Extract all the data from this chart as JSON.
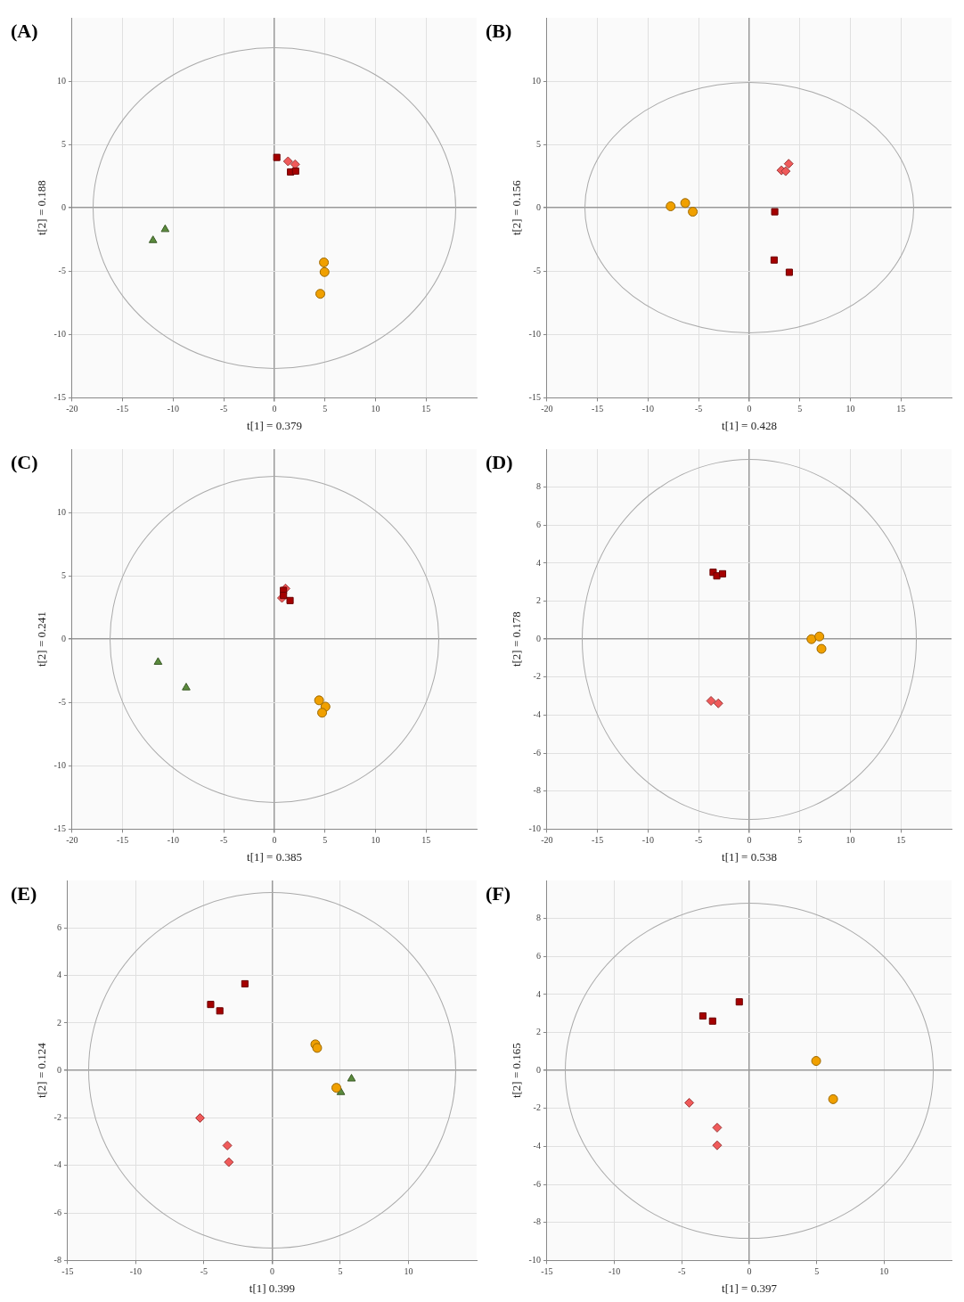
{
  "chart_data": [
    {
      "type": "scatter",
      "title": "(A)",
      "xlabel": "t[1] = 0.379",
      "ylabel": "t[2] = 0.188",
      "xlim": [
        -20,
        20
      ],
      "ylim": [
        -15,
        15
      ],
      "xticks": [
        -20,
        -15,
        -10,
        -5,
        0,
        5,
        10,
        15
      ],
      "yticks": [
        -15,
        -10,
        -5,
        0,
        5,
        10
      ],
      "grid": true,
      "series": [
        {
          "marker": "square",
          "color": "#a50000",
          "x": [
            0.24,
            1.6,
            2.1
          ],
          "values": [
            3.98,
            2.83,
            2.9
          ]
        },
        {
          "marker": "diamond",
          "color": "#f05a5a",
          "x": [
            1.35,
            2.05
          ],
          "values": [
            3.67,
            3.43
          ]
        },
        {
          "marker": "triangle",
          "color": "#5a8a3c",
          "x": [
            -10.8,
            -12.0
          ],
          "values": [
            -1.7,
            -2.57
          ]
        },
        {
          "marker": "circle",
          "color": "#f0a000",
          "x": [
            4.9,
            4.96,
            4.54
          ],
          "values": [
            -4.31,
            -5.07,
            -6.79
          ]
        }
      ]
    },
    {
      "type": "scatter",
      "title": "(B)",
      "xlabel": "t[1] = 0.428",
      "ylabel": "t[2] = 0.156",
      "xlim": [
        -20,
        20
      ],
      "ylim": [
        -15,
        15
      ],
      "xticks": [
        -20,
        -15,
        -10,
        -5,
        0,
        5,
        10,
        15
      ],
      "yticks": [
        -15,
        -10,
        -5,
        0,
        5,
        10
      ],
      "grid": true,
      "series": [
        {
          "marker": "square",
          "color": "#a50000",
          "x": [
            2.52,
            2.46,
            3.96
          ],
          "values": [
            -0.31,
            -4.12,
            -5.09
          ]
        },
        {
          "marker": "diamond",
          "color": "#f05a5a",
          "x": [
            3.18,
            3.6,
            3.9
          ],
          "values": [
            2.96,
            2.89,
            3.48
          ]
        },
        {
          "marker": "circle",
          "color": "#f0a000",
          "x": [
            -7.77,
            -6.33,
            -5.58
          ],
          "values": [
            0.12,
            0.38,
            -0.31
          ]
        }
      ]
    },
    {
      "type": "scatter",
      "title": "(C)",
      "xlabel": "t[1] = 0.385",
      "ylabel": "t[2] = 0.241",
      "xlim": [
        -20,
        20
      ],
      "ylim": [
        -15,
        15
      ],
      "xticks": [
        -20,
        -15,
        -10,
        -5,
        0,
        5,
        10,
        15
      ],
      "yticks": [
        -15,
        -10,
        -5,
        0,
        5,
        10
      ],
      "grid": true,
      "series": [
        {
          "marker": "square",
          "color": "#a50000",
          "x": [
            0.9,
            0.9,
            1.55
          ],
          "values": [
            3.85,
            3.45,
            3.05
          ]
        },
        {
          "marker": "diamond",
          "color": "#f05a5a",
          "x": [
            1.1,
            0.75
          ],
          "values": [
            4.0,
            3.25
          ]
        },
        {
          "marker": "triangle",
          "color": "#5a8a3c",
          "x": [
            -11.5,
            -8.72
          ],
          "values": [
            -1.81,
            -3.83
          ]
        },
        {
          "marker": "circle",
          "color": "#f0a000",
          "x": [
            4.42,
            5.05,
            4.72
          ],
          "values": [
            -4.83,
            -5.33,
            -5.81
          ]
        }
      ]
    },
    {
      "type": "scatter",
      "title": "(D)",
      "xlabel": "t[1] = 0.538",
      "ylabel": "t[2] = 0.178",
      "xlim": [
        -20,
        20
      ],
      "ylim": [
        -10,
        10
      ],
      "xticks": [
        -20,
        -15,
        -10,
        -5,
        0,
        5,
        10,
        15
      ],
      "yticks": [
        -10,
        -8,
        -6,
        -4,
        -2,
        0,
        2,
        4,
        6,
        8
      ],
      "grid": true,
      "series": [
        {
          "marker": "square",
          "color": "#a50000",
          "x": [
            -3.57,
            -3.21,
            -2.64
          ],
          "values": [
            3.52,
            3.33,
            3.44
          ]
        },
        {
          "marker": "diamond",
          "color": "#f05a5a",
          "x": [
            -3.78,
            -3.06
          ],
          "values": [
            -3.25,
            -3.38
          ]
        },
        {
          "marker": "circle",
          "color": "#f0a000",
          "x": [
            6.15,
            6.93,
            7.14
          ],
          "values": [
            0,
            0.14,
            -0.51
          ]
        }
      ]
    },
    {
      "type": "scatter",
      "title": "(E)",
      "xlabel": "t[1] 0.399",
      "ylabel": "t[2] = 0.124",
      "xlim": [
        -15,
        15
      ],
      "ylim": [
        -8,
        8
      ],
      "xticks": [
        -15,
        -10,
        -5,
        0,
        5,
        10
      ],
      "yticks": [
        -8,
        -6,
        -4,
        -2,
        0,
        2,
        4,
        6
      ],
      "grid": true,
      "series": [
        {
          "marker": "square",
          "color": "#a50000",
          "x": [
            -2.0,
            -4.51,
            -3.84
          ],
          "values": [
            3.65,
            2.78,
            2.51
          ]
        },
        {
          "marker": "diamond",
          "color": "#f05a5a",
          "x": [
            -5.29,
            -3.29,
            -3.18
          ],
          "values": [
            -2.0,
            -3.16,
            -3.86
          ]
        },
        {
          "marker": "circle",
          "color": "#f0a000",
          "x": [
            3.17,
            3.3,
            4.71
          ],
          "values": [
            1.1,
            0.95,
            -0.73
          ]
        },
        {
          "marker": "triangle",
          "color": "#5a8a3c",
          "x": [
            5.82,
            5.04
          ],
          "values": [
            -0.35,
            -0.92
          ]
        }
      ]
    },
    {
      "type": "scatter",
      "title": "(F)",
      "xlabel": "t[1] = 0.397",
      "ylabel": "t[2] = 0.165",
      "xlim": [
        -15,
        15
      ],
      "ylim": [
        -10,
        10
      ],
      "xticks": [
        -15,
        -10,
        -5,
        0,
        5,
        10
      ],
      "yticks": [
        -10,
        -8,
        -6,
        -4,
        -2,
        0,
        2,
        4,
        6,
        8
      ],
      "grid": true,
      "series": [
        {
          "marker": "square",
          "color": "#a50000",
          "x": [
            -0.74,
            -3.44,
            -2.72
          ],
          "values": [
            3.61,
            2.87,
            2.6
          ]
        },
        {
          "marker": "diamond",
          "color": "#f05a5a",
          "x": [
            -4.45,
            -2.38,
            -2.38
          ],
          "values": [
            -1.7,
            -3.01,
            -3.94
          ]
        },
        {
          "marker": "circle",
          "color": "#f0a000",
          "x": [
            4.96,
            6.22
          ],
          "values": [
            0.5,
            -1.51
          ]
        }
      ]
    }
  ]
}
